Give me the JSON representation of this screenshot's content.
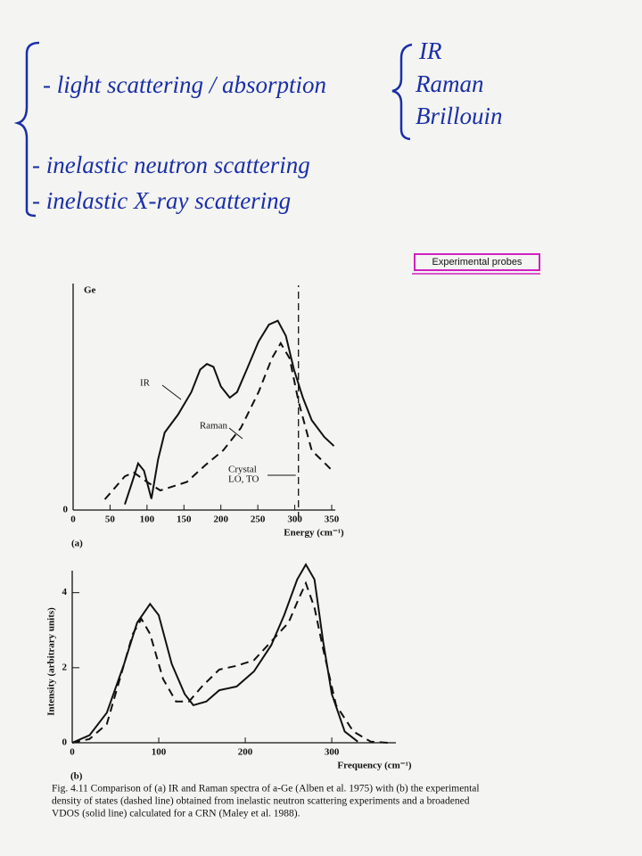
{
  "notes": {
    "items": [
      "- light scattering / absorption",
      "- inelastic neutron scattering",
      "- inelastic X-ray scattering"
    ],
    "probes": [
      "IR",
      "Raman",
      "Brillouin"
    ]
  },
  "tag": "Experimental probes",
  "chart_data": [
    {
      "type": "line",
      "label": "Ge",
      "panel": "(a)",
      "xlabel": "Energy (cm⁻¹)",
      "xlim": [
        0,
        350
      ],
      "xticks": [
        0,
        50,
        100,
        150,
        200,
        250,
        300,
        350
      ],
      "ylim": [
        0,
        4
      ],
      "yticks": [
        0
      ],
      "series": [
        {
          "name": "IR",
          "color": "#111111",
          "dash": false,
          "x": [
            70,
            80,
            88,
            96,
            106,
            115,
            124,
            142,
            160,
            172,
            181,
            190,
            200,
            212,
            222,
            235,
            251,
            265,
            277,
            288,
            299,
            311,
            323,
            340,
            353
          ],
          "values": [
            0.1,
            0.5,
            0.83,
            0.7,
            0.2,
            0.9,
            1.38,
            1.7,
            2.1,
            2.5,
            2.6,
            2.55,
            2.2,
            2.0,
            2.1,
            2.5,
            3.0,
            3.3,
            3.37,
            3.1,
            2.5,
            2.0,
            1.6,
            1.3,
            1.14
          ]
        },
        {
          "name": "Raman",
          "color": "#111111",
          "dash": true,
          "x": [
            43,
            70,
            82,
            100,
            118,
            154,
            179,
            203,
            227,
            251,
            269,
            281,
            293,
            305,
            323,
            341,
            353
          ],
          "values": [
            0.19,
            0.6,
            0.67,
            0.5,
            0.35,
            0.5,
            0.8,
            1.06,
            1.46,
            2.1,
            2.7,
            2.97,
            2.7,
            1.94,
            1.06,
            0.83,
            0.67
          ]
        }
      ],
      "marker_line": {
        "x": 305,
        "text": [
          "Crystal",
          "LO, TO"
        ]
      }
    },
    {
      "type": "line",
      "panel": "(b)",
      "xlabel": "Frequency (cm⁻¹)",
      "ylabel": "Intensity (arbitrary units)",
      "xlim": [
        0,
        370
      ],
      "xticks": [
        0,
        100,
        200,
        300
      ],
      "ylim": [
        0,
        4.8
      ],
      "yticks": [
        0,
        2,
        4
      ],
      "series": [
        {
          "color": "#111111",
          "dash": false,
          "x": [
            0,
            20,
            40,
            60,
            75,
            90,
            100,
            115,
            130,
            140,
            155,
            170,
            190,
            210,
            230,
            245,
            260,
            270,
            280,
            290,
            300,
            315,
            330
          ],
          "values": [
            0.0,
            0.2,
            0.8,
            2.1,
            3.2,
            3.7,
            3.4,
            2.1,
            1.3,
            1.0,
            1.1,
            1.4,
            1.5,
            1.9,
            2.6,
            3.4,
            4.35,
            4.75,
            4.35,
            2.7,
            1.3,
            0.3,
            0.03
          ]
        },
        {
          "color": "#111111",
          "dash": true,
          "x": [
            0,
            20,
            40,
            55,
            70,
            80,
            90,
            105,
            120,
            135,
            150,
            170,
            190,
            210,
            230,
            250,
            262,
            270,
            280,
            290,
            305,
            325,
            345,
            365
          ],
          "values": [
            0,
            0.1,
            0.5,
            1.7,
            2.9,
            3.3,
            2.9,
            1.7,
            1.1,
            1.1,
            1.5,
            1.95,
            2.05,
            2.2,
            2.7,
            3.2,
            3.85,
            4.25,
            3.6,
            2.5,
            1.0,
            0.3,
            0.03,
            0
          ]
        }
      ]
    }
  ],
  "caption": [
    "Fig. 4.11  Comparison of (a) IR and Raman spectra of a-Ge (Alben et al. 1975) with (b) the experimental",
    "density of states (dashed line) obtained from inelastic neutron scattering experiments and a broadened",
    "VDOS (solid line) calculated for a CRN (Maley et al. 1988)."
  ]
}
